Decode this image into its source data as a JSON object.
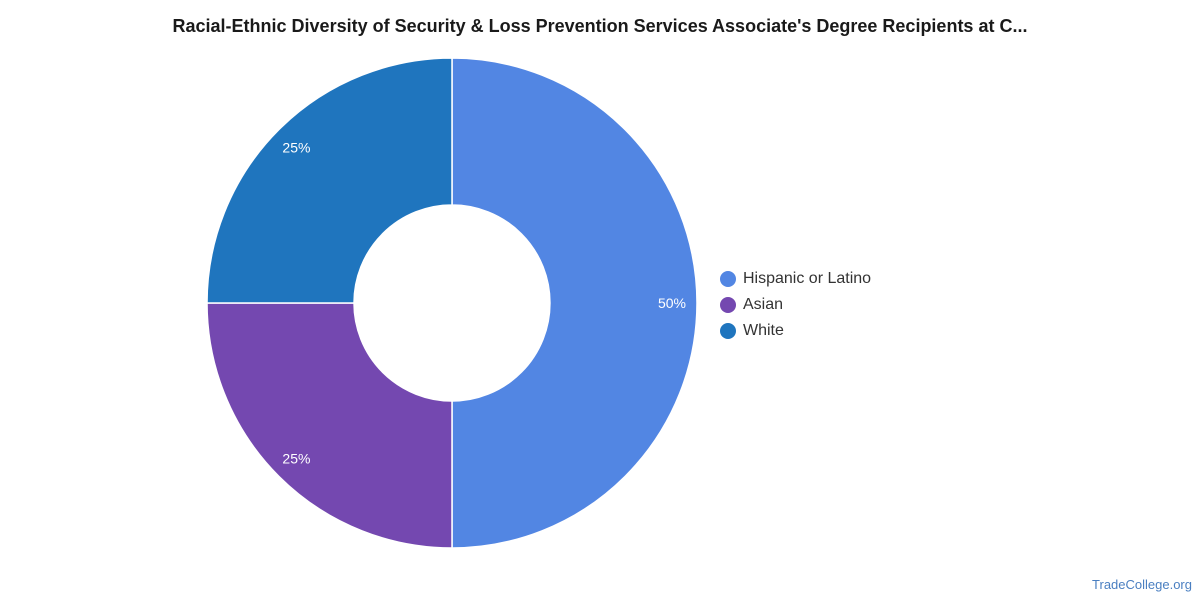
{
  "chart_data": {
    "type": "pie",
    "title": "Racial-Ethnic Diversity of Security & Loss Prevention Services Associate's Degree Recipients at C...",
    "categories": [
      "Hispanic or Latino",
      "Asian",
      "White"
    ],
    "values": [
      50,
      25,
      25
    ],
    "data_labels": [
      "50%",
      "25%",
      "25%"
    ],
    "colors": [
      "#5286e3",
      "#7448b0",
      "#1f75be"
    ],
    "donut": true,
    "legend_position": "right"
  },
  "source": "TradeCollege.org"
}
